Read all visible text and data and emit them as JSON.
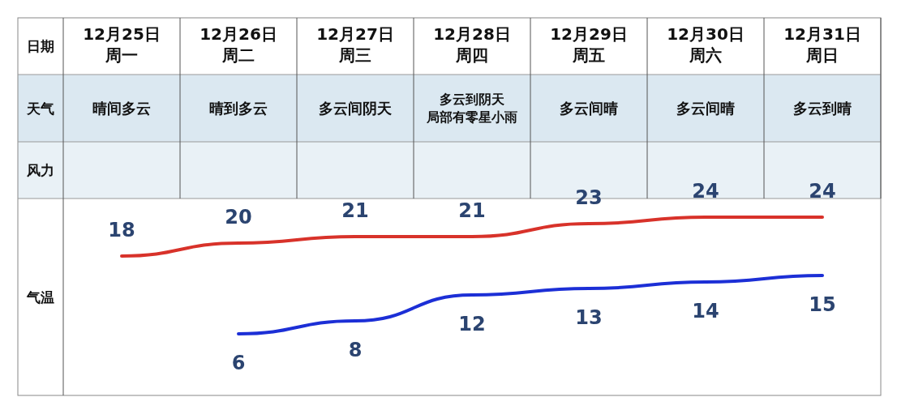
{
  "chart_data": {
    "type": "line",
    "categories": [
      "12月25日",
      "12月26日",
      "12月27日",
      "12月28日",
      "12月29日",
      "12月30日",
      "12月31日"
    ],
    "annotations": [
      "日期",
      "天气",
      "风力",
      "气温",
      "周一",
      "周二",
      "周三",
      "周四",
      "周五",
      "周六",
      "周日",
      "晴间多云",
      "晴到多云",
      "多云间阴天",
      "多云到阴天局部有零星小雨",
      "多云间晴",
      "多云间晴",
      "多云到晴"
    ],
    "series": [
      {
        "color": "#d8322a",
        "values": [
          18,
          20,
          21,
          21,
          23,
          24,
          24
        ]
      },
      {
        "color": "#1c2fd6",
        "values": [
          null,
          6,
          8,
          12,
          13,
          14,
          15
        ]
      }
    ],
    "data_labels": true,
    "line_style": "solid"
  }
}
